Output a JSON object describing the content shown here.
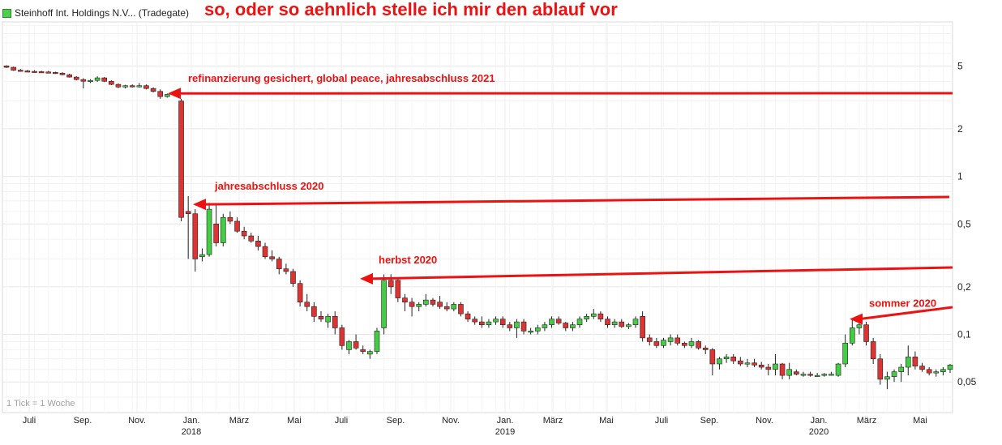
{
  "legend": {
    "label": "Steinhoff Int. Holdings N.V... (Tradegate)",
    "swatch_color": "#4ccf4c"
  },
  "headline": "so, oder so aehnlich stelle ich mir den ablauf vor",
  "tick_note": "1 Tick = 1 Woche",
  "chart_data": {
    "type": "candlestick",
    "title": "Steinhoff Int. Holdings N.V... (Tradegate)",
    "y_scale": "log",
    "ylim": [
      0.032,
      9.5
    ],
    "y_ticks": [
      {
        "value": 5,
        "label": "5"
      },
      {
        "value": 2,
        "label": "2"
      },
      {
        "value": 1,
        "label": "1"
      },
      {
        "value": 0.5,
        "label": "0,5"
      },
      {
        "value": 0.2,
        "label": "0,2"
      },
      {
        "value": 0.1,
        "label": "0,1"
      },
      {
        "value": 0.05,
        "label": "0,05"
      }
    ],
    "x_ticks": [
      {
        "label": "Juli",
        "year": ""
      },
      {
        "label": "Sep.",
        "year": ""
      },
      {
        "label": "Nov.",
        "year": ""
      },
      {
        "label": "Jan.",
        "year": "2018"
      },
      {
        "label": "März",
        "year": ""
      },
      {
        "label": "Mai",
        "year": ""
      },
      {
        "label": "Juli",
        "year": ""
      },
      {
        "label": "Sep.",
        "year": ""
      },
      {
        "label": "Nov.",
        "year": ""
      },
      {
        "label": "Jan.",
        "year": "2019"
      },
      {
        "label": "März",
        "year": ""
      },
      {
        "label": "Mai",
        "year": ""
      },
      {
        "label": "Juli",
        "year": ""
      },
      {
        "label": "Sep.",
        "year": ""
      },
      {
        "label": "Nov.",
        "year": ""
      },
      {
        "label": "Jan.",
        "year": "2020"
      },
      {
        "label": "März",
        "year": ""
      },
      {
        "label": "Mai",
        "year": ""
      }
    ],
    "grid": true,
    "up_color": "#44cc44",
    "down_color": "#dd3333",
    "candles": [
      [
        5.0,
        5.05,
        4.85,
        4.9
      ],
      [
        4.9,
        4.95,
        4.65,
        4.7
      ],
      [
        4.7,
        4.78,
        4.6,
        4.65
      ],
      [
        4.65,
        4.72,
        4.58,
        4.62
      ],
      [
        4.62,
        4.7,
        4.55,
        4.6
      ],
      [
        4.6,
        4.66,
        4.52,
        4.58
      ],
      [
        4.58,
        4.65,
        4.5,
        4.55
      ],
      [
        4.55,
        4.6,
        4.45,
        4.5
      ],
      [
        4.5,
        4.56,
        4.36,
        4.4
      ],
      [
        4.4,
        4.46,
        4.22,
        4.25
      ],
      [
        4.25,
        4.3,
        4.05,
        4.1
      ],
      [
        4.1,
        4.18,
        3.6,
        4.0
      ],
      [
        4.0,
        4.12,
        3.9,
        4.05
      ],
      [
        4.05,
        4.3,
        3.96,
        4.2
      ],
      [
        4.2,
        4.26,
        3.95,
        4.0
      ],
      [
        4.0,
        4.06,
        3.78,
        3.82
      ],
      [
        3.82,
        3.88,
        3.62,
        3.68
      ],
      [
        3.68,
        3.8,
        3.6,
        3.75
      ],
      [
        3.75,
        3.82,
        3.65,
        3.7
      ],
      [
        3.7,
        3.9,
        3.65,
        3.75
      ],
      [
        3.75,
        3.82,
        3.55,
        3.6
      ],
      [
        3.6,
        3.66,
        3.4,
        3.45
      ],
      [
        3.45,
        3.55,
        3.1,
        3.2
      ],
      [
        3.2,
        3.35,
        3.15,
        3.3
      ],
      [
        3.3,
        3.45,
        3.25,
        3.4
      ],
      [
        3.0,
        3.1,
        0.52,
        0.55
      ],
      [
        0.6,
        0.75,
        0.3,
        0.58
      ],
      [
        0.58,
        0.62,
        0.25,
        0.3
      ],
      [
        0.31,
        0.35,
        0.29,
        0.32
      ],
      [
        0.32,
        0.68,
        0.31,
        0.62
      ],
      [
        0.5,
        0.66,
        0.36,
        0.38
      ],
      [
        0.38,
        0.58,
        0.36,
        0.55
      ],
      [
        0.55,
        0.6,
        0.5,
        0.52
      ],
      [
        0.52,
        0.55,
        0.44,
        0.45
      ],
      [
        0.45,
        0.48,
        0.4,
        0.42
      ],
      [
        0.42,
        0.44,
        0.38,
        0.39
      ],
      [
        0.39,
        0.42,
        0.34,
        0.36
      ],
      [
        0.36,
        0.38,
        0.3,
        0.31
      ],
      [
        0.31,
        0.34,
        0.29,
        0.3
      ],
      [
        0.3,
        0.31,
        0.24,
        0.26
      ],
      [
        0.26,
        0.28,
        0.24,
        0.25
      ],
      [
        0.25,
        0.26,
        0.2,
        0.21
      ],
      [
        0.21,
        0.22,
        0.15,
        0.16
      ],
      [
        0.16,
        0.18,
        0.14,
        0.15
      ],
      [
        0.15,
        0.16,
        0.12,
        0.13
      ],
      [
        0.13,
        0.14,
        0.12,
        0.125
      ],
      [
        0.12,
        0.135,
        0.11,
        0.13
      ],
      [
        0.13,
        0.14,
        0.1,
        0.11
      ],
      [
        0.11,
        0.115,
        0.08,
        0.085
      ],
      [
        0.08,
        0.092,
        0.075,
        0.09
      ],
      [
        0.09,
        0.1,
        0.08,
        0.082
      ],
      [
        0.08,
        0.085,
        0.075,
        0.078
      ],
      [
        0.075,
        0.08,
        0.07,
        0.078
      ],
      [
        0.078,
        0.11,
        0.075,
        0.105
      ],
      [
        0.11,
        0.24,
        0.1,
        0.22
      ],
      [
        0.22,
        0.24,
        0.18,
        0.2
      ],
      [
        0.22,
        0.23,
        0.16,
        0.17
      ],
      [
        0.17,
        0.18,
        0.14,
        0.16
      ],
      [
        0.16,
        0.17,
        0.13,
        0.15
      ],
      [
        0.15,
        0.16,
        0.14,
        0.155
      ],
      [
        0.155,
        0.18,
        0.15,
        0.165
      ],
      [
        0.165,
        0.17,
        0.15,
        0.155
      ],
      [
        0.16,
        0.175,
        0.145,
        0.15
      ],
      [
        0.15,
        0.16,
        0.14,
        0.145
      ],
      [
        0.145,
        0.16,
        0.14,
        0.155
      ],
      [
        0.155,
        0.16,
        0.13,
        0.135
      ],
      [
        0.135,
        0.14,
        0.12,
        0.125
      ],
      [
        0.125,
        0.13,
        0.115,
        0.12
      ],
      [
        0.12,
        0.13,
        0.11,
        0.115
      ],
      [
        0.115,
        0.125,
        0.11,
        0.12
      ],
      [
        0.12,
        0.13,
        0.115,
        0.125
      ],
      [
        0.125,
        0.13,
        0.11,
        0.115
      ],
      [
        0.115,
        0.12,
        0.105,
        0.11
      ],
      [
        0.11,
        0.125,
        0.095,
        0.12
      ],
      [
        0.12,
        0.125,
        0.1,
        0.105
      ],
      [
        0.105,
        0.11,
        0.1,
        0.105
      ],
      [
        0.105,
        0.115,
        0.1,
        0.11
      ],
      [
        0.11,
        0.12,
        0.105,
        0.115
      ],
      [
        0.115,
        0.13,
        0.11,
        0.125
      ],
      [
        0.125,
        0.13,
        0.115,
        0.118
      ],
      [
        0.118,
        0.12,
        0.105,
        0.11
      ],
      [
        0.11,
        0.12,
        0.105,
        0.115
      ],
      [
        0.115,
        0.13,
        0.11,
        0.125
      ],
      [
        0.125,
        0.135,
        0.12,
        0.13
      ],
      [
        0.13,
        0.145,
        0.125,
        0.135
      ],
      [
        0.135,
        0.14,
        0.12,
        0.125
      ],
      [
        0.125,
        0.13,
        0.11,
        0.115
      ],
      [
        0.115,
        0.125,
        0.11,
        0.12
      ],
      [
        0.12,
        0.125,
        0.11,
        0.112
      ],
      [
        0.112,
        0.118,
        0.108,
        0.115
      ],
      [
        0.115,
        0.13,
        0.11,
        0.125
      ],
      [
        0.13,
        0.14,
        0.09,
        0.095
      ],
      [
        0.095,
        0.1,
        0.085,
        0.09
      ],
      [
        0.09,
        0.095,
        0.082,
        0.085
      ],
      [
        0.085,
        0.095,
        0.082,
        0.092
      ],
      [
        0.09,
        0.1,
        0.085,
        0.095
      ],
      [
        0.095,
        0.1,
        0.085,
        0.088
      ],
      [
        0.088,
        0.09,
        0.082,
        0.085
      ],
      [
        0.085,
        0.095,
        0.082,
        0.09
      ],
      [
        0.09,
        0.092,
        0.08,
        0.082
      ],
      [
        0.082,
        0.085,
        0.075,
        0.08
      ],
      [
        0.08,
        0.082,
        0.055,
        0.065
      ],
      [
        0.065,
        0.072,
        0.06,
        0.07
      ],
      [
        0.07,
        0.075,
        0.066,
        0.072
      ],
      [
        0.072,
        0.075,
        0.065,
        0.068
      ],
      [
        0.068,
        0.072,
        0.063,
        0.065
      ],
      [
        0.065,
        0.07,
        0.062,
        0.066
      ],
      [
        0.066,
        0.07,
        0.062,
        0.064
      ],
      [
        0.064,
        0.067,
        0.06,
        0.062
      ],
      [
        0.062,
        0.065,
        0.055,
        0.06
      ],
      [
        0.06,
        0.075,
        0.055,
        0.065
      ],
      [
        0.065,
        0.066,
        0.052,
        0.055
      ],
      [
        0.055,
        0.066,
        0.052,
        0.06
      ],
      [
        0.058,
        0.06,
        0.055,
        0.056
      ],
      [
        0.056,
        0.058,
        0.054,
        0.056
      ],
      [
        0.056,
        0.058,
        0.054,
        0.055
      ],
      [
        0.055,
        0.057,
        0.054,
        0.055
      ],
      [
        0.055,
        0.057,
        0.054,
        0.056
      ],
      [
        0.056,
        0.058,
        0.055,
        0.056
      ],
      [
        0.055,
        0.066,
        0.054,
        0.065
      ],
      [
        0.065,
        0.1,
        0.062,
        0.088
      ],
      [
        0.088,
        0.125,
        0.085,
        0.11
      ],
      [
        0.11,
        0.12,
        0.1,
        0.115
      ],
      [
        0.115,
        0.12,
        0.085,
        0.09
      ],
      [
        0.09,
        0.095,
        0.065,
        0.07
      ],
      [
        0.07,
        0.075,
        0.048,
        0.052
      ],
      [
        0.052,
        0.058,
        0.045,
        0.054
      ],
      [
        0.054,
        0.06,
        0.05,
        0.058
      ],
      [
        0.058,
        0.065,
        0.05,
        0.062
      ],
      [
        0.062,
        0.085,
        0.055,
        0.072
      ],
      [
        0.072,
        0.078,
        0.06,
        0.063
      ],
      [
        0.063,
        0.066,
        0.058,
        0.06
      ],
      [
        0.06,
        0.062,
        0.055,
        0.057
      ],
      [
        0.057,
        0.06,
        0.054,
        0.058
      ],
      [
        0.058,
        0.062,
        0.055,
        0.06
      ],
      [
        0.06,
        0.065,
        0.057,
        0.064
      ]
    ],
    "annotations": [
      {
        "text": "refinanzierung gesichert, global peace, jahresabschluss 2021",
        "level": 3.35
      },
      {
        "text": "jahresabschluss 2020",
        "level": 0.665
      },
      {
        "text": "herbst 2020",
        "level": 0.225
      },
      {
        "text": "sommer 2020",
        "level": 0.125
      }
    ],
    "annotation_color": "#ee1111"
  }
}
